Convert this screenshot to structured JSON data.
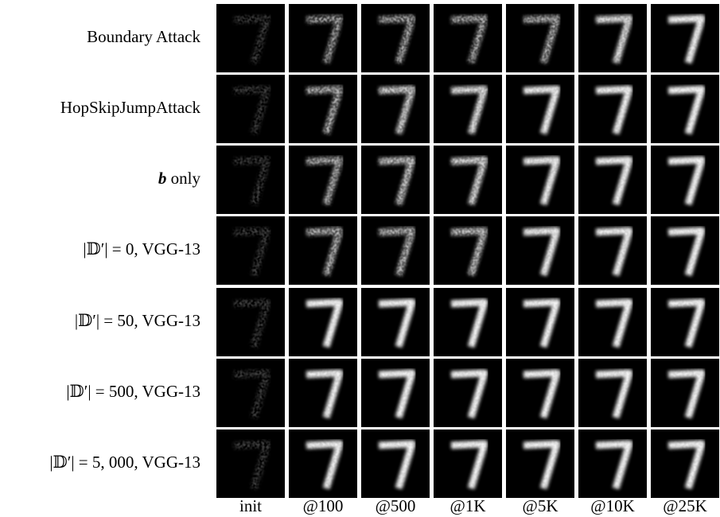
{
  "figure": {
    "rows": [
      {
        "label": "Boundary Attack"
      },
      {
        "label": "HopSkipJumpAttack"
      },
      {
        "symbol": "b",
        "label": "only"
      },
      {
        "label": "|𝔻′| = 0, VGG-13"
      },
      {
        "label": "|𝔻′| = 50, VGG-13"
      },
      {
        "label": "|𝔻′| = 500, VGG-13"
      },
      {
        "label": "|𝔻′| = 5, 000, VGG-13"
      }
    ],
    "columns": [
      "init",
      "@100",
      "@500",
      "@1K",
      "@5K",
      "@10K",
      "@25K"
    ]
  }
}
